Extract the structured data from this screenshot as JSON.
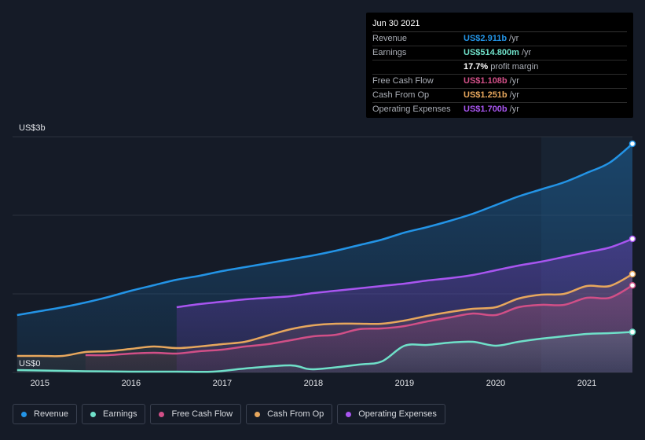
{
  "tooltip": {
    "date": "Jun 30 2021",
    "rows": [
      {
        "label": "Revenue",
        "value": "US$2.911b",
        "unit": "/yr",
        "color": "#2394e6"
      },
      {
        "label": "Earnings",
        "value": "US$514.800m",
        "unit": "/yr",
        "color": "#6fe0c9"
      },
      {
        "label": "",
        "value": "17.7%",
        "unit": "profit margin",
        "color": "#ffffff"
      },
      {
        "label": "Free Cash Flow",
        "value": "US$1.108b",
        "unit": "/yr",
        "color": "#d14f87"
      },
      {
        "label": "Cash From Op",
        "value": "US$1.251b",
        "unit": "/yr",
        "color": "#e7a75d"
      },
      {
        "label": "Operating Expenses",
        "value": "US$1.700b",
        "unit": "/yr",
        "color": "#a855f0"
      }
    ]
  },
  "legend": [
    {
      "label": "Revenue",
      "color": "#2394e6"
    },
    {
      "label": "Earnings",
      "color": "#6fe0c9"
    },
    {
      "label": "Free Cash Flow",
      "color": "#d14f87"
    },
    {
      "label": "Cash From Op",
      "color": "#e7a75d"
    },
    {
      "label": "Operating Expenses",
      "color": "#a855f0"
    }
  ],
  "chart_data": {
    "type": "area",
    "y_top_label": "US$3b",
    "y_bottom_label": "US$0",
    "ylim": [
      0,
      3.0
    ],
    "xlim": [
      2014.7,
      2021.5
    ],
    "x_ticks": [
      {
        "x": 2015.0,
        "label": "2015"
      },
      {
        "x": 2016.0,
        "label": "2016"
      },
      {
        "x": 2017.0,
        "label": "2017"
      },
      {
        "x": 2018.0,
        "label": "2018"
      },
      {
        "x": 2019.0,
        "label": "2019"
      },
      {
        "x": 2020.0,
        "label": "2020"
      },
      {
        "x": 2021.0,
        "label": "2021"
      }
    ],
    "highlight_start": 2020.5,
    "series": [
      {
        "name": "Revenue",
        "color": "#2394e6",
        "x": [
          2014.75,
          2015.0,
          2015.25,
          2015.5,
          2015.75,
          2016.0,
          2016.25,
          2016.5,
          2016.75,
          2017.0,
          2017.25,
          2017.5,
          2017.75,
          2018.0,
          2018.25,
          2018.5,
          2018.75,
          2019.0,
          2019.25,
          2019.5,
          2019.75,
          2020.0,
          2020.25,
          2020.5,
          2020.75,
          2021.0,
          2021.25,
          2021.5
        ],
        "values": [
          0.73,
          0.78,
          0.83,
          0.89,
          0.96,
          1.04,
          1.11,
          1.18,
          1.23,
          1.29,
          1.34,
          1.39,
          1.44,
          1.49,
          1.55,
          1.62,
          1.69,
          1.78,
          1.85,
          1.93,
          2.02,
          2.13,
          2.24,
          2.33,
          2.42,
          2.54,
          2.67,
          2.91
        ]
      },
      {
        "name": "Earnings",
        "color": "#6fe0c9",
        "x": [
          2014.75,
          2015.0,
          2015.5,
          2016.0,
          2016.5,
          2016.9,
          2017.25,
          2017.75,
          2018.0,
          2018.5,
          2018.75,
          2019.0,
          2019.25,
          2019.5,
          2019.75,
          2020.0,
          2020.25,
          2020.5,
          2020.75,
          2021.0,
          2021.25,
          2021.5
        ],
        "values": [
          0.03,
          0.025,
          0.015,
          0.01,
          0.01,
          0.01,
          0.05,
          0.09,
          0.04,
          0.1,
          0.14,
          0.34,
          0.35,
          0.38,
          0.39,
          0.34,
          0.39,
          0.43,
          0.46,
          0.49,
          0.5,
          0.515
        ]
      },
      {
        "name": "Free Cash Flow",
        "color": "#d14f87",
        "x": [
          2015.5,
          2015.75,
          2016.0,
          2016.25,
          2016.5,
          2016.75,
          2017.0,
          2017.25,
          2017.5,
          2017.75,
          2018.0,
          2018.25,
          2018.5,
          2018.75,
          2019.0,
          2019.25,
          2019.5,
          2019.75,
          2020.0,
          2020.25,
          2020.5,
          2020.75,
          2021.0,
          2021.25,
          2021.5
        ],
        "values": [
          0.22,
          0.22,
          0.24,
          0.25,
          0.24,
          0.27,
          0.29,
          0.33,
          0.36,
          0.41,
          0.46,
          0.48,
          0.55,
          0.56,
          0.59,
          0.65,
          0.7,
          0.75,
          0.73,
          0.83,
          0.86,
          0.86,
          0.95,
          0.95,
          1.108
        ]
      },
      {
        "name": "Cash From Op",
        "color": "#e7a75d",
        "x": [
          2014.75,
          2015.0,
          2015.25,
          2015.5,
          2015.75,
          2016.0,
          2016.25,
          2016.5,
          2016.75,
          2017.0,
          2017.25,
          2017.5,
          2017.75,
          2018.0,
          2018.25,
          2018.5,
          2018.75,
          2019.0,
          2019.25,
          2019.5,
          2019.75,
          2020.0,
          2020.25,
          2020.5,
          2020.75,
          2021.0,
          2021.25,
          2021.5
        ],
        "values": [
          0.21,
          0.21,
          0.21,
          0.26,
          0.27,
          0.3,
          0.33,
          0.31,
          0.33,
          0.36,
          0.39,
          0.47,
          0.55,
          0.6,
          0.62,
          0.62,
          0.62,
          0.66,
          0.72,
          0.77,
          0.81,
          0.83,
          0.94,
          0.99,
          1.0,
          1.1,
          1.1,
          1.251
        ]
      },
      {
        "name": "Operating Expenses",
        "color": "#a855f0",
        "x": [
          2016.5,
          2016.75,
          2017.0,
          2017.25,
          2017.5,
          2017.75,
          2018.0,
          2018.25,
          2018.5,
          2018.75,
          2019.0,
          2019.25,
          2019.5,
          2019.75,
          2020.0,
          2020.25,
          2020.5,
          2020.75,
          2021.0,
          2021.25,
          2021.5
        ],
        "values": [
          0.83,
          0.87,
          0.9,
          0.93,
          0.95,
          0.97,
          1.01,
          1.04,
          1.07,
          1.1,
          1.13,
          1.17,
          1.2,
          1.24,
          1.3,
          1.36,
          1.41,
          1.47,
          1.53,
          1.59,
          1.7
        ]
      }
    ]
  }
}
